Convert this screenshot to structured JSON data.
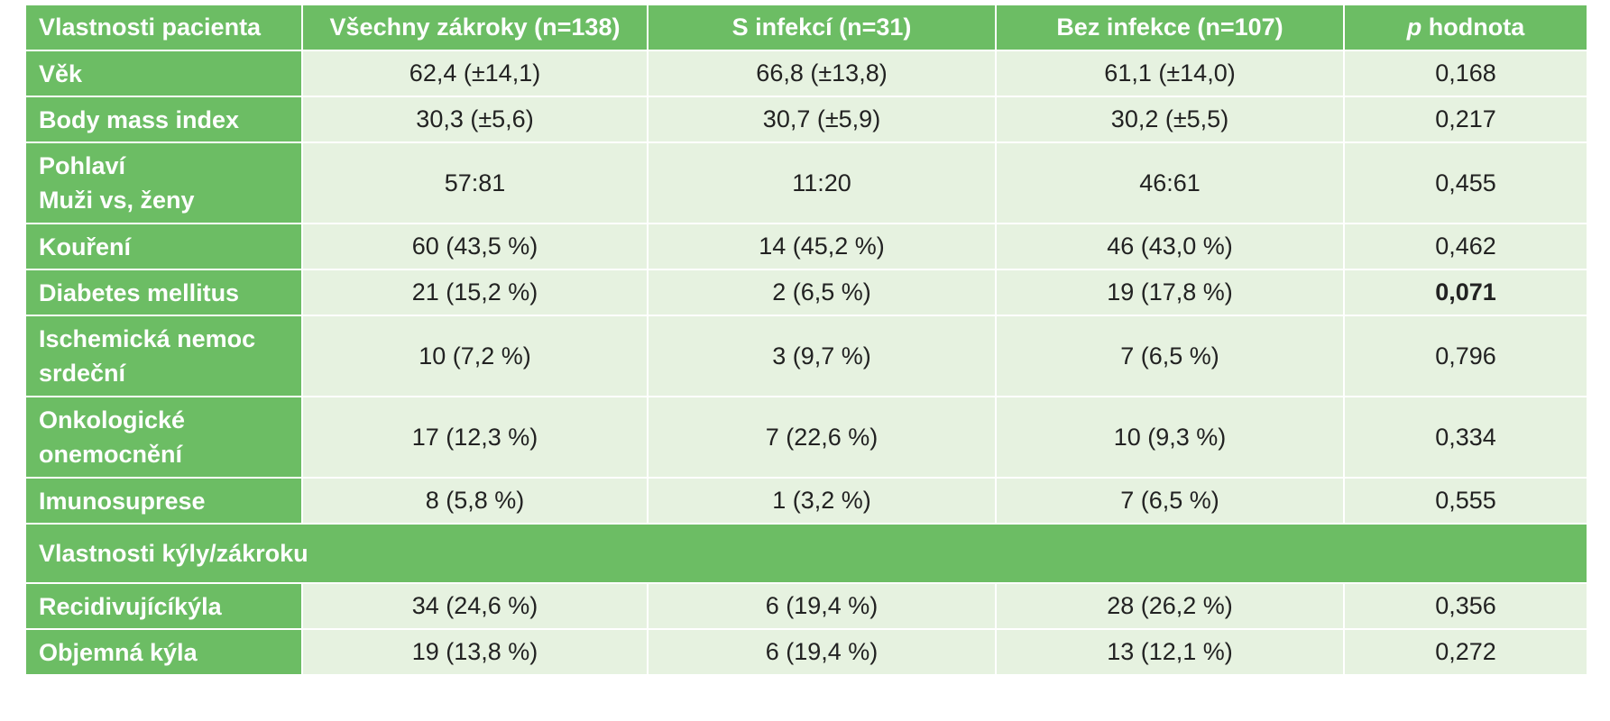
{
  "table": {
    "headers": [
      {
        "text": "Vlastnosti pacienta"
      },
      {
        "text": "Všechny zákroky (n=138)"
      },
      {
        "text": "S infekcí (n=31)"
      },
      {
        "text": "Bez infekce (n=107)"
      },
      {
        "italic": "p",
        "text": " hodnota"
      }
    ],
    "rows": [
      {
        "label": "Věk",
        "values": [
          "62,4 (±14,1)",
          "66,8 (±13,8)",
          "61,1 (±14,0)",
          "0,168"
        ]
      },
      {
        "label": "Body mass index",
        "values": [
          "30,3 (±5,6)",
          "30,7 (±5,9)",
          "30,2 (±5,5)",
          "0,217"
        ]
      },
      {
        "label_lines": [
          "Pohlaví",
          "Muži vs, ženy"
        ],
        "values": [
          "57:81",
          "11:20",
          "46:61",
          "0,455"
        ]
      },
      {
        "label": "Kouření",
        "values": [
          "60 (43,5 %)",
          "14 (45,2 %)",
          "46 (43,0 %)",
          "0,462"
        ]
      },
      {
        "label": "Diabetes mellitus",
        "values": [
          "21 (15,2 %)",
          "2 (6,5 %)",
          "19 (17,8 %)",
          "0,071"
        ],
        "bold_p": true
      },
      {
        "label_lines": [
          "Ischemická nemoc",
          "srdeční"
        ],
        "values": [
          "10 (7,2 %)",
          "3 (9,7 %)",
          "7 (6,5 %)",
          "0,796"
        ]
      },
      {
        "label_lines": [
          "Onkologické",
          "onemocnění"
        ],
        "values": [
          "17 (12,3 %)",
          "7 (22,6 %)",
          "10 (9,3 %)",
          "0,334"
        ]
      },
      {
        "label": "Imunosuprese",
        "values": [
          "8 (5,8 %)",
          "1 (3,2 %)",
          "7 (6,5 %)",
          "0,555"
        ]
      }
    ],
    "section_label": "Vlastnosti kýly/zákroku",
    "section_rows": [
      {
        "label": "Recidivujícíkýla",
        "values": [
          "34 (24,6 %)",
          "6 (19,4 %)",
          "28 (26,2 %)",
          "0,356"
        ]
      },
      {
        "label": "Objemná kýla",
        "values": [
          "19 (13,8 %)",
          "6 (19,4 %)",
          "13 (12,1 %)",
          "0,272"
        ]
      }
    ]
  },
  "colors": {
    "header_green": "#6cbd64",
    "cell_green": "#e6f2e0"
  }
}
